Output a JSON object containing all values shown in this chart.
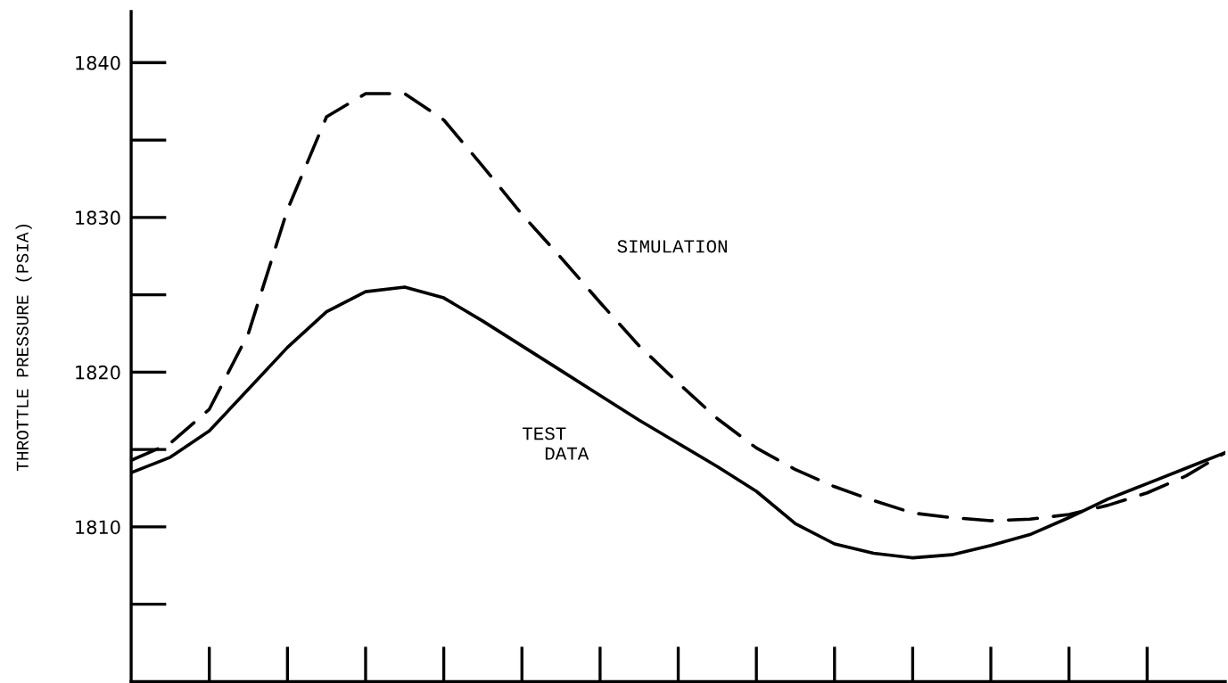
{
  "chart_data": {
    "type": "line",
    "ylabel": "THROTTLE PRESSURE (PSIA)",
    "categories": [
      null,
      null,
      null,
      null,
      null,
      null,
      null,
      null,
      null,
      null,
      null,
      null,
      null,
      null,
      null,
      null,
      null,
      null,
      null,
      null,
      null,
      null,
      null,
      null,
      null,
      null,
      null,
      null,
      null
    ],
    "ylim": [
      1800,
      1843.3
    ],
    "yticks": [
      1810,
      1820,
      1830,
      1840
    ],
    "grid": false,
    "legend": false,
    "marker": "none",
    "series": [
      {
        "name": "SIMULATION",
        "color": "#000000",
        "line_style": "dashed",
        "values": [
          1814.3,
          1815.4,
          1817.6,
          1822.5,
          1830.5,
          1836.5,
          1838.0,
          1838.0,
          1836.3,
          1833.3,
          1830.2,
          1827.4,
          1824.5,
          1821.7,
          1819.3,
          1817.0,
          1815.1,
          1813.7,
          1812.6,
          1811.7,
          1810.9,
          1810.6,
          1810.4,
          1810.5,
          1810.8,
          1811.4,
          1812.2,
          1813.3,
          1814.8
        ]
      },
      {
        "name": "TEST DATA",
        "color": "#000000",
        "line_style": "solid",
        "values": [
          1813.5,
          1814.5,
          1816.2,
          1818.9,
          1821.6,
          1823.9,
          1825.2,
          1825.5,
          1824.8,
          1823.3,
          1821.7,
          1820.1,
          1818.5,
          1816.9,
          1815.4,
          1813.9,
          1812.3,
          1810.2,
          1808.9,
          1808.3,
          1808.0,
          1808.2,
          1808.8,
          1809.5,
          1810.6,
          1811.8,
          1812.8,
          1813.8,
          1814.8
        ]
      }
    ]
  }
}
